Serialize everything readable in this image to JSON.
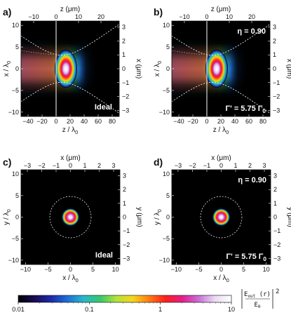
{
  "chart_data": {
    "type": "heatmap",
    "colors": {
      "scale": [
        "#000000",
        "#1a0b55",
        "#1d2ba8",
        "#1f6fd6",
        "#29b7c8",
        "#37c86a",
        "#b5e23a",
        "#f3d61d",
        "#ff7a12",
        "#ff1e1e",
        "#e01f8a",
        "#c86fd6",
        "#eadcf2",
        "#ffffff"
      ]
    },
    "panels": [
      {
        "label": "a)",
        "kind": "side",
        "xlabel": "z / λ0",
        "ylabel": "x / λ0",
        "top_label": "z (μm)",
        "right_label": "x (μm)",
        "xlim": [
          -50,
          90
        ],
        "ylim": [
          -11,
          11
        ],
        "xticks": [
          -40,
          -20,
          0,
          20,
          40,
          60,
          80
        ],
        "yticks": [
          -10,
          -5,
          0,
          5,
          10
        ],
        "top_ticks": [
          -10,
          0,
          10,
          20
        ],
        "top_scale": 0.3125,
        "right_ticks": [
          -3,
          -2,
          -1,
          0,
          1,
          2,
          3
        ],
        "right_scale": 0.3125,
        "mask_z": 0,
        "annotations": [
          "Ideal"
        ]
      },
      {
        "label": "b)",
        "kind": "side",
        "xlabel": "z / λ0",
        "ylabel": "x / λ0",
        "top_label": "z (μm)",
        "right_label": "x (μm)",
        "xlim": [
          -50,
          90
        ],
        "ylim": [
          -11,
          11
        ],
        "xticks": [
          -40,
          -20,
          0,
          20,
          40,
          60,
          80
        ],
        "yticks": [
          -10,
          -5,
          0,
          5,
          10
        ],
        "top_ticks": [
          -10,
          0,
          10,
          20
        ],
        "top_scale": 0.3125,
        "right_ticks": [
          -3,
          -2,
          -1,
          0,
          1,
          2,
          3
        ],
        "right_scale": 0.3125,
        "mask_z": 0,
        "annotations": [
          "η = 0.90",
          "Γ' = 5.75 Γ0"
        ]
      },
      {
        "label": "c)",
        "kind": "cross",
        "xlabel": "x / λ0",
        "ylabel": "y / λ0",
        "top_label": "x (μm)",
        "right_label": "y (μm)",
        "xlim": [
          -11,
          11
        ],
        "ylim": [
          -11,
          11
        ],
        "xticks": [
          -10,
          -5,
          0,
          5,
          10
        ],
        "yticks": [
          -10,
          -5,
          0,
          5,
          10
        ],
        "top_ticks": [
          -3,
          -2,
          -1,
          0,
          1,
          2,
          3
        ],
        "top_scale": 0.3125,
        "right_ticks": [
          -3,
          -2,
          -1,
          0,
          1,
          2,
          3
        ],
        "right_scale": 0.3125,
        "annotations": [
          "Ideal"
        ]
      },
      {
        "label": "d)",
        "kind": "cross",
        "xlabel": "x / λ0",
        "ylabel": "y / λ0",
        "top_label": "x (μm)",
        "right_label": "y (μm)",
        "xlim": [
          -11,
          11
        ],
        "ylim": [
          -11,
          11
        ],
        "xticks": [
          -10,
          -5,
          0,
          5,
          10
        ],
        "yticks": [
          -10,
          -5,
          0,
          5,
          10
        ],
        "top_ticks": [
          -3,
          -2,
          -1,
          0,
          1,
          2,
          3
        ],
        "top_scale": 0.3125,
        "right_ticks": [
          -3,
          -2,
          -1,
          0,
          1,
          2,
          3
        ],
        "right_scale": 0.3125,
        "annotations": [
          "η = 0.90",
          "Γ' = 5.75 Γ0"
        ]
      }
    ],
    "colorbar": {
      "scale": "log",
      "range": [
        0.01,
        10
      ],
      "ticks": [
        "0.01",
        "0.1",
        "1",
        "10"
      ],
      "label": "| E_out(r) / E0 |²"
    }
  }
}
